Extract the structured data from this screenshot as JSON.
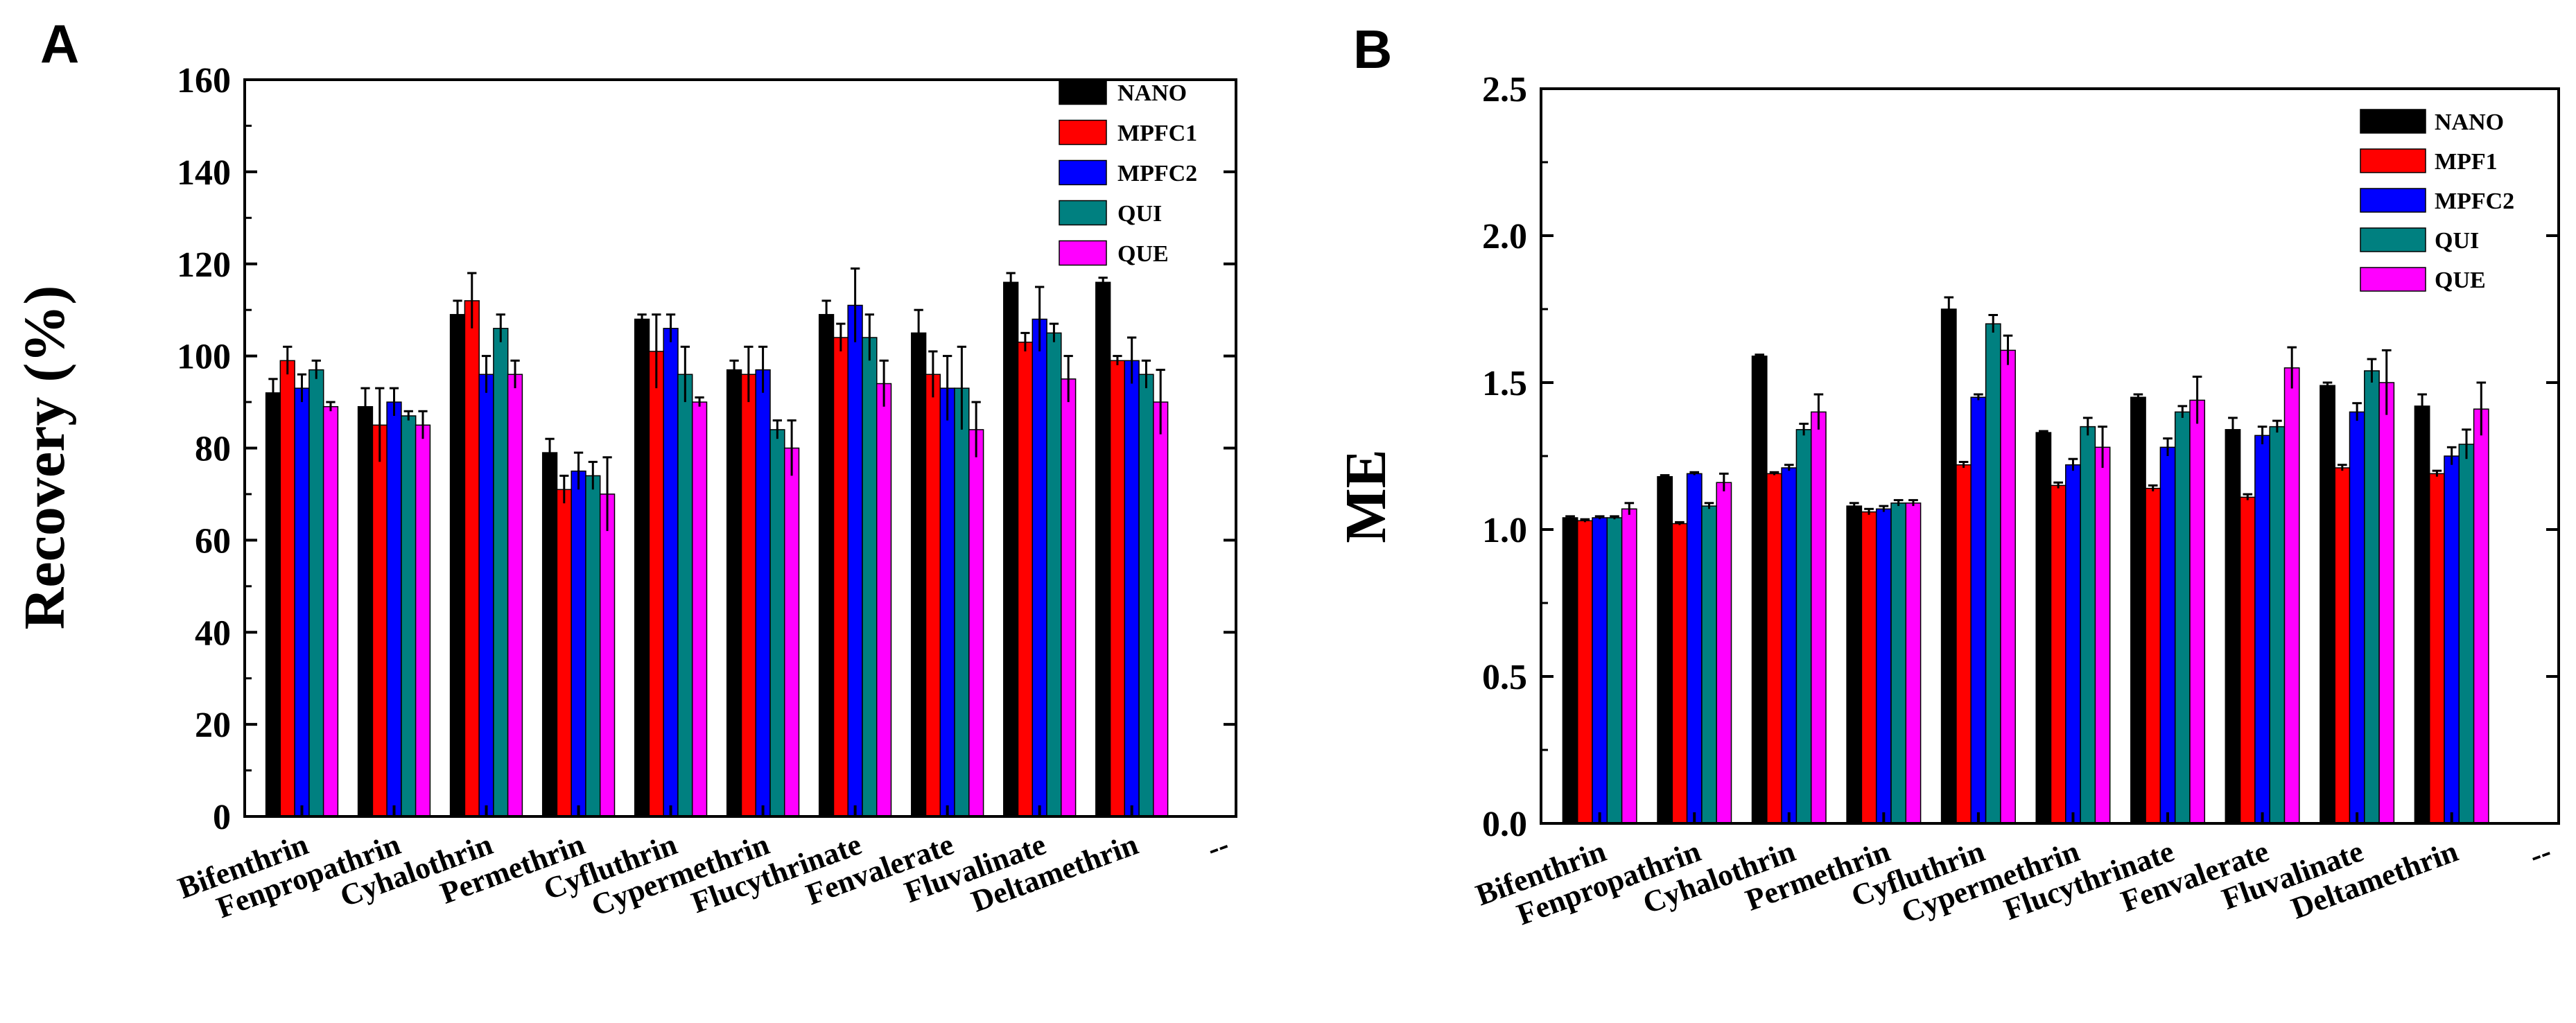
{
  "chart_data": [
    {
      "panel_label": "A",
      "type": "bar",
      "title": "",
      "xlabel": "",
      "ylabel": "Recovery (%)",
      "ylim": [
        0,
        160
      ],
      "yticks": [
        "0",
        "20",
        "40",
        "60",
        "80",
        "100",
        "120",
        "140",
        "160"
      ],
      "trailing_tick": "--",
      "categories": [
        "Bifenthrin",
        "Fenpropathrin",
        "Cyhalothrin",
        "Permethrin",
        "Cyfluthrin",
        "Cypermethrin",
        "Flucythrinate",
        "Fenvalerate",
        "Fluvalinate",
        "Deltamethrin"
      ],
      "legend_position": "top-right",
      "series": [
        {
          "name": "NANO",
          "color": "#000000",
          "values": [
            92,
            89,
            109,
            79,
            108,
            97,
            109,
            105,
            116,
            116
          ],
          "errors": [
            3,
            4,
            3,
            3,
            1,
            2,
            3,
            5,
            2,
            1
          ]
        },
        {
          "name": "MPFC1",
          "color": "#ff0000",
          "values": [
            99,
            85,
            112,
            71,
            101,
            96,
            104,
            96,
            103,
            99
          ],
          "errors": [
            3,
            8,
            6,
            3,
            8,
            6,
            3,
            5,
            2,
            1
          ]
        },
        {
          "name": "MPFC2",
          "color": "#0000ff",
          "values": [
            93,
            90,
            96,
            75,
            106,
            97,
            111,
            93,
            108,
            99
          ],
          "errors": [
            3,
            3,
            4,
            4,
            3,
            5,
            8,
            7,
            7,
            5
          ]
        },
        {
          "name": "QUI",
          "color": "#008080",
          "values": [
            97,
            87,
            106,
            74,
            96,
            84,
            104,
            93,
            105,
            96
          ],
          "errors": [
            2,
            1,
            3,
            3,
            6,
            2,
            5,
            9,
            2,
            3
          ]
        },
        {
          "name": "QUE",
          "color": "#ff00ff",
          "values": [
            89,
            85,
            96,
            70,
            90,
            80,
            94,
            84,
            95,
            90
          ],
          "errors": [
            1,
            3,
            3,
            8,
            1,
            6,
            5,
            6,
            5,
            7
          ]
        }
      ]
    },
    {
      "panel_label": "B",
      "type": "bar",
      "title": "",
      "xlabel": "",
      "ylabel": "ME",
      "ylim": [
        0,
        2.5
      ],
      "yticks": [
        "0.0",
        "0.5",
        "1.0",
        "1.5",
        "2.0",
        "2.5"
      ],
      "trailing_tick": "--",
      "categories": [
        "Bifenthrin",
        "Fenpropathrin",
        "Cyhalothrin",
        "Permethrin",
        "Cyfluthrin",
        "Cypermethrin",
        "Flucythrinate",
        "Fenvalerate",
        "Fluvalinate",
        "Deltamethrin"
      ],
      "legend_position": "top-right",
      "series": [
        {
          "name": "NANO",
          "color": "#000000",
          "values": [
            1.04,
            1.18,
            1.59,
            1.08,
            1.75,
            1.33,
            1.45,
            1.34,
            1.49,
            1.42
          ],
          "errors": [
            0.005,
            0.005,
            0.005,
            0.01,
            0.04,
            0.005,
            0.01,
            0.04,
            0.01,
            0.04
          ]
        },
        {
          "name": "MPF1",
          "color": "#ff0000",
          "values": [
            1.03,
            1.02,
            1.19,
            1.06,
            1.22,
            1.15,
            1.14,
            1.11,
            1.21,
            1.19
          ],
          "errors": [
            0.005,
            0.005,
            0.005,
            0.01,
            0.01,
            0.01,
            0.01,
            0.01,
            0.01,
            0.01
          ]
        },
        {
          "name": "MPFC2",
          "color": "#0000ff",
          "values": [
            1.04,
            1.19,
            1.21,
            1.07,
            1.45,
            1.22,
            1.28,
            1.32,
            1.4,
            1.25
          ],
          "errors": [
            0.005,
            0.005,
            0.01,
            0.01,
            0.01,
            0.02,
            0.03,
            0.03,
            0.03,
            0.03
          ]
        },
        {
          "name": "QUI",
          "color": "#008080",
          "values": [
            1.04,
            1.08,
            1.34,
            1.09,
            1.7,
            1.35,
            1.4,
            1.35,
            1.54,
            1.29
          ],
          "errors": [
            0.005,
            0.01,
            0.02,
            0.01,
            0.03,
            0.03,
            0.02,
            0.02,
            0.04,
            0.05
          ]
        },
        {
          "name": "QUE",
          "color": "#ff00ff",
          "values": [
            1.07,
            1.16,
            1.4,
            1.09,
            1.61,
            1.28,
            1.44,
            1.55,
            1.5,
            1.41
          ],
          "errors": [
            0.02,
            0.03,
            0.06,
            0.01,
            0.05,
            0.07,
            0.08,
            0.07,
            0.11,
            0.09
          ]
        }
      ]
    }
  ]
}
